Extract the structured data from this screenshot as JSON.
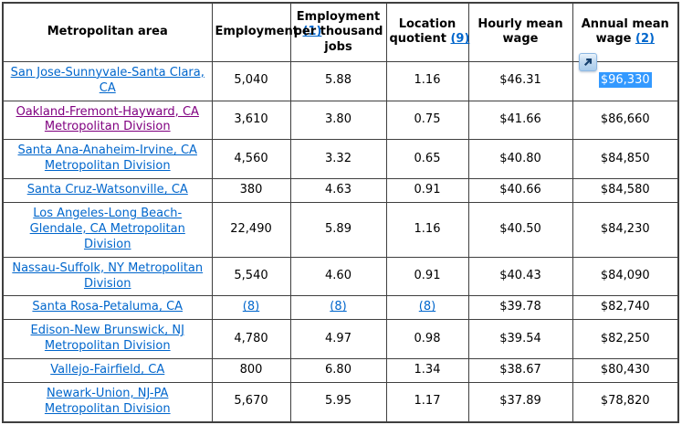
{
  "table": {
    "columns": [
      {
        "key": "metro_area",
        "label": "Metropolitan area",
        "footnote": null
      },
      {
        "key": "employment",
        "label": "Employment",
        "footnote": "(1)"
      },
      {
        "key": "per_thousand",
        "label": "Employment per thousand jobs",
        "footnote": null
      },
      {
        "key": "location_quotient",
        "label": "Location quotient",
        "footnote": "(9)"
      },
      {
        "key": "hourly_mean_wage",
        "label": "Hourly mean wage",
        "footnote": null
      },
      {
        "key": "annual_mean_wage",
        "label": "Annual mean wage",
        "footnote": "(2)",
        "accelerator_icon": true
      }
    ],
    "rows": [
      {
        "area": "San Jose-Sunnyvale-Santa Clara, CA",
        "employment": "5,040",
        "employment_per_thousand": "5.88",
        "location_quotient": "1.16",
        "hourly_mean_wage": "$46.31",
        "annual_mean_wage": "$96,330",
        "area_link_visited": false,
        "annual_wage_selected": true
      },
      {
        "area": "Oakland-Fremont-Hayward, CA Metropolitan Division",
        "employment": "3,610",
        "employment_per_thousand": "3.80",
        "location_quotient": "0.75",
        "hourly_mean_wage": "$41.66",
        "annual_mean_wage": "$86,660",
        "area_link_visited": true,
        "annual_wage_selected": false
      },
      {
        "area": "Santa Ana-Anaheim-Irvine, CA Metropolitan Division",
        "employment": "4,560",
        "employment_per_thousand": "3.32",
        "location_quotient": "0.65",
        "hourly_mean_wage": "$40.80",
        "annual_mean_wage": "$84,850",
        "area_link_visited": false,
        "annual_wage_selected": false
      },
      {
        "area": "Santa Cruz-Watsonville, CA",
        "employment": "380",
        "employment_per_thousand": "4.63",
        "location_quotient": "0.91",
        "hourly_mean_wage": "$40.66",
        "annual_mean_wage": "$84,580",
        "area_link_visited": false,
        "annual_wage_selected": false
      },
      {
        "area": "Los Angeles-Long Beach-Glendale, CA Metropolitan Division",
        "employment": "22,490",
        "employment_per_thousand": "5.89",
        "location_quotient": "1.16",
        "hourly_mean_wage": "$40.50",
        "annual_mean_wage": "$84,230",
        "area_link_visited": false,
        "annual_wage_selected": false
      },
      {
        "area": "Nassau-Suffolk, NY Metropolitan Division",
        "employment": "5,540",
        "employment_per_thousand": "4.60",
        "location_quotient": "0.91",
        "hourly_mean_wage": "$40.43",
        "annual_mean_wage": "$84,090",
        "area_link_visited": false,
        "annual_wage_selected": false
      },
      {
        "area": "Santa Rosa-Petaluma, CA",
        "employment": "(8)",
        "employment_per_thousand": "(8)",
        "location_quotient": "(8)",
        "hourly_mean_wage": "$39.78",
        "annual_mean_wage": "$82,740",
        "area_link_visited": false,
        "annual_wage_selected": false
      },
      {
        "area": "Edison-New Brunswick, NJ Metropolitan Division",
        "employment": "4,780",
        "employment_per_thousand": "4.97",
        "location_quotient": "0.98",
        "hourly_mean_wage": "$39.54",
        "annual_mean_wage": "$82,250",
        "area_link_visited": false,
        "annual_wage_selected": false
      },
      {
        "area": "Vallejo-Fairfield, CA",
        "employment": "800",
        "employment_per_thousand": "6.80",
        "location_quotient": "1.34",
        "hourly_mean_wage": "$38.67",
        "annual_mean_wage": "$80,430",
        "area_link_visited": false,
        "annual_wage_selected": false
      },
      {
        "area": "Newark-Union, NJ-PA Metropolitan Division",
        "employment": "5,670",
        "employment_per_thousand": "5.95",
        "location_quotient": "1.17",
        "hourly_mean_wage": "$37.89",
        "annual_mean_wage": "$78,820",
        "area_link_visited": false,
        "annual_wage_selected": false
      }
    ]
  },
  "icons": {
    "accelerator": "accelerator-icon"
  },
  "colors": {
    "table_border": "#3f3f3f",
    "link_blue": "#0066cc",
    "link_visited_purple": "#800080",
    "selection_background": "#3399ff",
    "selection_text": "#ffffff",
    "header_text": "#000000",
    "body_text": "#000000",
    "background": "#ffffff",
    "accelerator_frame": "#8db8e3",
    "accelerator_arrow": "#16406e"
  }
}
